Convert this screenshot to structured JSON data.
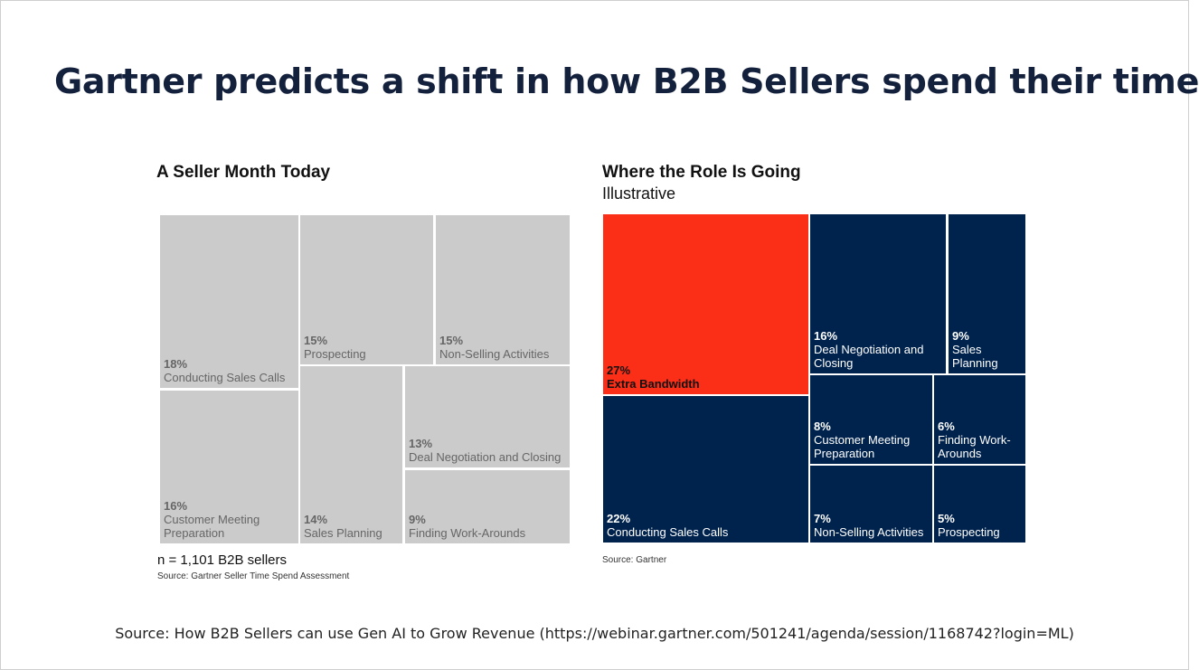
{
  "title": "Gartner predicts a shift in how B2B Sellers spend their time",
  "chart_data": [
    {
      "type": "treemap",
      "title": "A Seller Month Today",
      "unit": "%",
      "items": [
        {
          "label": "Conducting Sales Calls",
          "value": 18,
          "pct": "18%"
        },
        {
          "label": "Customer Meeting Preparation",
          "value": 16,
          "pct": "16%"
        },
        {
          "label": "Prospecting",
          "value": 15,
          "pct": "15%"
        },
        {
          "label": "Non-Selling Activities",
          "value": 15,
          "pct": "15%"
        },
        {
          "label": "Sales Planning",
          "value": 14,
          "pct": "14%"
        },
        {
          "label": "Deal Negotiation and Closing",
          "value": 13,
          "pct": "13%"
        },
        {
          "label": "Finding Work-Arounds",
          "value": 9,
          "pct": "9%"
        }
      ],
      "note": "n = 1,101 B2B sellers",
      "source": "Source: Gartner Seller Time Spend Assessment",
      "color": "#cbcbcb"
    },
    {
      "type": "treemap",
      "title": "Where the Role Is Going",
      "subtitle": "Illustrative",
      "unit": "%",
      "items": [
        {
          "label": "Extra Bandwidth",
          "value": 27,
          "pct": "27%",
          "highlight": true
        },
        {
          "label": "Conducting Sales Calls",
          "value": 22,
          "pct": "22%"
        },
        {
          "label": "Deal Negotiation and Closing",
          "value": 16,
          "pct": "16%"
        },
        {
          "label": "Sales Planning",
          "value": 9,
          "pct": "9%"
        },
        {
          "label": "Customer Meeting Preparation",
          "value": 8,
          "pct": "8%"
        },
        {
          "label": "Non-Selling Activities",
          "value": 7,
          "pct": "7%"
        },
        {
          "label": "Finding Work-Arounds",
          "value": 6,
          "pct": "6%"
        },
        {
          "label": "Prospecting",
          "value": 5,
          "pct": "5%"
        }
      ],
      "source": "Source: Gartner",
      "color": "#00234d",
      "highlight_color": "#fb2e17"
    }
  ],
  "footer": "Source: How B2B Sellers can use Gen AI to Grow Revenue (https://webinar.gartner.com/501241/agenda/session/1168742?login=ML)"
}
